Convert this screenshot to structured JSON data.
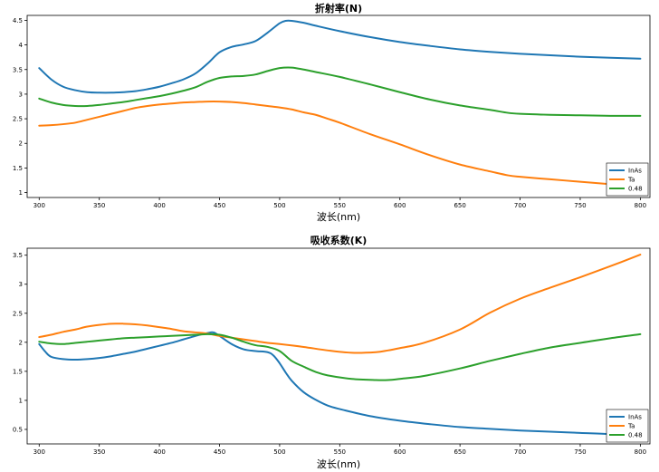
{
  "chart_data": [
    {
      "type": "line",
      "title": "折射率(N)",
      "xlabel": "波长(nm)",
      "ylabel": "",
      "xlim": [
        290,
        808
      ],
      "ylim": [
        0.9,
        4.6
      ],
      "xticks": [
        300,
        350,
        400,
        450,
        500,
        550,
        600,
        650,
        700,
        750,
        800
      ],
      "yticks": [
        1,
        1.5,
        2,
        2.5,
        3,
        3.5,
        4,
        4.5
      ],
      "ytick_labels": [
        "1",
        "1.5",
        "2",
        "2.5",
        "3",
        "3.5",
        "4",
        "4.5"
      ],
      "legend": "bottom-right",
      "grid": false,
      "series": [
        {
          "name": "InAs",
          "color": "#1f77b4",
          "x": [
            300,
            310,
            320,
            330,
            340,
            350,
            360,
            370,
            380,
            390,
            400,
            410,
            420,
            430,
            440,
            450,
            460,
            470,
            480,
            490,
            500,
            505,
            510,
            520,
            530,
            550,
            575,
            600,
            625,
            650,
            675,
            700,
            725,
            750,
            775,
            800
          ],
          "y": [
            3.53,
            3.3,
            3.15,
            3.08,
            3.04,
            3.03,
            3.03,
            3.04,
            3.06,
            3.1,
            3.15,
            3.22,
            3.3,
            3.42,
            3.62,
            3.85,
            3.96,
            4.01,
            4.08,
            4.25,
            4.44,
            4.49,
            4.49,
            4.45,
            4.39,
            4.28,
            4.16,
            4.06,
            3.98,
            3.91,
            3.86,
            3.82,
            3.79,
            3.76,
            3.74,
            3.72
          ]
        },
        {
          "name": "Ta",
          "color": "#ff7f0e",
          "x": [
            300,
            310,
            320,
            330,
            340,
            350,
            360,
            370,
            380,
            390,
            400,
            410,
            420,
            430,
            440,
            450,
            460,
            470,
            480,
            490,
            500,
            510,
            520,
            530,
            540,
            550,
            575,
            600,
            625,
            650,
            675,
            690,
            700,
            725,
            750,
            775,
            800
          ],
          "y": [
            2.36,
            2.37,
            2.39,
            2.42,
            2.48,
            2.54,
            2.6,
            2.66,
            2.72,
            2.76,
            2.79,
            2.81,
            2.83,
            2.84,
            2.85,
            2.85,
            2.84,
            2.82,
            2.79,
            2.76,
            2.73,
            2.69,
            2.63,
            2.58,
            2.5,
            2.42,
            2.19,
            1.98,
            1.76,
            1.57,
            1.43,
            1.35,
            1.32,
            1.27,
            1.22,
            1.17,
            1.12
          ]
        },
        {
          "name": "0.48",
          "color": "#2ca02c",
          "x": [
            300,
            310,
            320,
            330,
            340,
            350,
            360,
            370,
            380,
            390,
            400,
            410,
            420,
            430,
            440,
            450,
            460,
            470,
            480,
            490,
            500,
            510,
            520,
            530,
            550,
            575,
            600,
            625,
            650,
            675,
            690,
            700,
            725,
            750,
            775,
            800
          ],
          "y": [
            2.91,
            2.83,
            2.78,
            2.76,
            2.76,
            2.78,
            2.81,
            2.84,
            2.88,
            2.92,
            2.96,
            3.01,
            3.07,
            3.14,
            3.25,
            3.33,
            3.36,
            3.37,
            3.4,
            3.47,
            3.53,
            3.54,
            3.5,
            3.45,
            3.35,
            3.2,
            3.04,
            2.89,
            2.77,
            2.68,
            2.62,
            2.6,
            2.58,
            2.57,
            2.56,
            2.56
          ]
        }
      ]
    },
    {
      "type": "line",
      "title": "吸收系数(K)",
      "xlabel": "波长(nm)",
      "ylabel": "",
      "xlim": [
        290,
        808
      ],
      "ylim": [
        0.25,
        3.62
      ],
      "xticks": [
        300,
        350,
        400,
        450,
        500,
        550,
        600,
        650,
        700,
        750,
        800
      ],
      "yticks": [
        0.5,
        1,
        1.5,
        2,
        2.5,
        3,
        3.5
      ],
      "ytick_labels": [
        "0.5",
        "1",
        "1.5",
        "2",
        "2.5",
        "3",
        "3.5"
      ],
      "legend": "bottom-right",
      "grid": false,
      "series": [
        {
          "name": "InAs",
          "color": "#1f77b4",
          "x": [
            300,
            305,
            310,
            320,
            330,
            340,
            350,
            360,
            370,
            380,
            390,
            400,
            410,
            420,
            430,
            440,
            445,
            450,
            460,
            470,
            480,
            490,
            495,
            500,
            505,
            510,
            520,
            530,
            540,
            550,
            575,
            600,
            625,
            650,
            675,
            700,
            725,
            750,
            775,
            800
          ],
          "y": [
            1.97,
            1.84,
            1.75,
            1.71,
            1.7,
            1.71,
            1.73,
            1.76,
            1.8,
            1.84,
            1.89,
            1.94,
            1.99,
            2.05,
            2.11,
            2.16,
            2.17,
            2.11,
            1.97,
            1.88,
            1.85,
            1.83,
            1.77,
            1.64,
            1.48,
            1.34,
            1.14,
            1.01,
            0.91,
            0.85,
            0.73,
            0.65,
            0.59,
            0.54,
            0.51,
            0.48,
            0.46,
            0.44,
            0.42,
            0.41
          ]
        },
        {
          "name": "Ta",
          "color": "#ff7f0e",
          "x": [
            300,
            310,
            320,
            330,
            340,
            350,
            360,
            370,
            380,
            390,
            400,
            410,
            420,
            430,
            440,
            450,
            460,
            470,
            480,
            490,
            500,
            520,
            540,
            560,
            580,
            590,
            600,
            620,
            650,
            675,
            700,
            725,
            750,
            775,
            800
          ],
          "y": [
            2.09,
            2.13,
            2.18,
            2.22,
            2.27,
            2.3,
            2.32,
            2.32,
            2.31,
            2.29,
            2.26,
            2.23,
            2.19,
            2.17,
            2.15,
            2.11,
            2.08,
            2.05,
            2.02,
            1.99,
            1.97,
            1.92,
            1.86,
            1.82,
            1.83,
            1.86,
            1.9,
            1.99,
            2.22,
            2.51,
            2.75,
            2.94,
            3.12,
            3.31,
            3.51
          ]
        },
        {
          "name": "0.48",
          "color": "#2ca02c",
          "x": [
            300,
            310,
            320,
            330,
            340,
            350,
            360,
            370,
            380,
            390,
            400,
            410,
            420,
            430,
            440,
            450,
            460,
            470,
            480,
            490,
            500,
            510,
            520,
            530,
            540,
            560,
            580,
            590,
            600,
            620,
            650,
            675,
            700,
            725,
            750,
            775,
            800
          ],
          "y": [
            2.01,
            1.98,
            1.97,
            1.99,
            2.01,
            2.03,
            2.05,
            2.07,
            2.08,
            2.09,
            2.1,
            2.11,
            2.12,
            2.13,
            2.14,
            2.13,
            2.08,
            2.01,
            1.95,
            1.92,
            1.85,
            1.68,
            1.58,
            1.49,
            1.43,
            1.37,
            1.35,
            1.35,
            1.37,
            1.42,
            1.55,
            1.68,
            1.8,
            1.91,
            1.99,
            2.07,
            2.14
          ]
        }
      ]
    }
  ]
}
